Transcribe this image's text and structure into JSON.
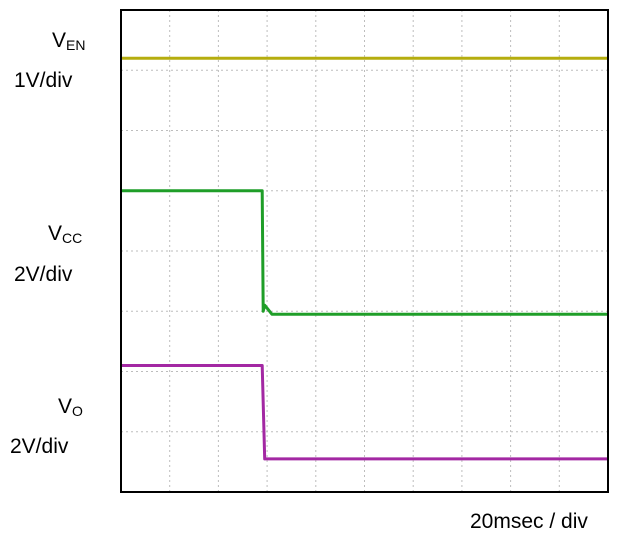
{
  "chart_data": {
    "type": "line",
    "title": "",
    "x_axis": {
      "divisions": 10,
      "scale": "20msec / div"
    },
    "y_axis": {
      "divisions": 8
    },
    "grid": true,
    "series": [
      {
        "name_main": "V",
        "name_sub": "EN",
        "scale": "1V/div",
        "color": "#b5ad0e",
        "points": [
          [
            0,
            7.2
          ],
          [
            10,
            7.2
          ]
        ]
      },
      {
        "name_main": "V",
        "name_sub": "CC",
        "scale": "2V/div",
        "color": "#1f9e28",
        "points": [
          [
            0,
            5.0
          ],
          [
            2.9,
            5.0
          ],
          [
            2.92,
            3.0
          ],
          [
            2.95,
            3.1
          ],
          [
            3.1,
            2.95
          ],
          [
            10,
            2.95
          ]
        ]
      },
      {
        "name_main": "V",
        "name_sub": "O",
        "scale": "2V/div",
        "color": "#a328a3",
        "points": [
          [
            0,
            2.1
          ],
          [
            2.9,
            2.1
          ],
          [
            2.95,
            0.55
          ],
          [
            10,
            0.55
          ]
        ]
      }
    ]
  }
}
